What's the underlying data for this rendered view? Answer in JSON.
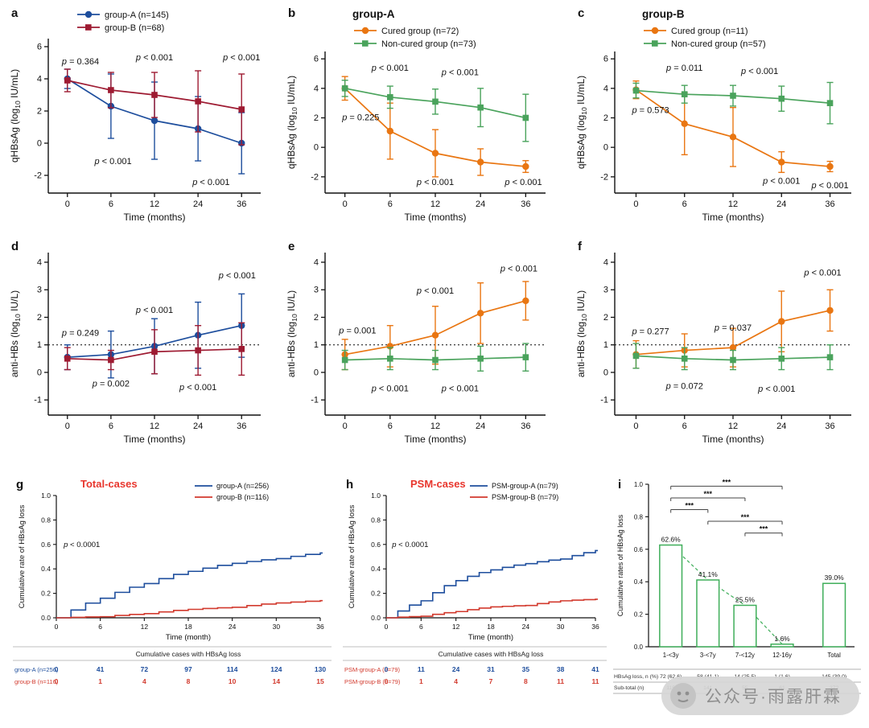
{
  "figure": {
    "panels": [
      {
        "letter": "a"
      },
      {
        "letter": "b"
      },
      {
        "letter": "c"
      },
      {
        "letter": "d"
      },
      {
        "letter": "e"
      },
      {
        "letter": "f"
      },
      {
        "letter": "g"
      },
      {
        "letter": "h"
      },
      {
        "letter": "i"
      }
    ],
    "watermark": {
      "text": "公众号·雨露肝霖"
    }
  },
  "colors": {
    "group_a_blue": "#1e4e9d",
    "group_b_maroon": "#9e1b32",
    "cured_orange": "#e97612",
    "noncured_green": "#4aa35c",
    "km_blue": "#1e4e9d",
    "km_red": "#d23a2e",
    "panel_title_red": "#e8362d",
    "bar_green": "#3fae5a"
  },
  "chart_data": [
    {
      "id": "a",
      "type": "errorline",
      "show_legend": true,
      "ylabel": "qHBsAg (log10 IU/mL)",
      "xlabel": "Time (months)",
      "ylim": [
        -3.1,
        6.5
      ],
      "yticks": [
        -2,
        0,
        2,
        4,
        6
      ],
      "categories": [
        "0",
        "6",
        "12",
        "24",
        "36"
      ],
      "series": [
        {
          "name": "group-A (n=145)",
          "color": "#1e4e9d",
          "marker": "circle",
          "values": [
            4.0,
            2.3,
            1.4,
            0.9,
            0.0
          ],
          "err": [
            0.6,
            2.0,
            2.4,
            2.0,
            1.9
          ]
        },
        {
          "name": "group-B (n=68)",
          "color": "#9e1b32",
          "marker": "square",
          "values": [
            3.9,
            3.3,
            3.0,
            2.6,
            2.1
          ],
          "err": [
            0.7,
            1.1,
            1.4,
            1.9,
            2.2
          ]
        }
      ],
      "annotations": [
        {
          "text": "p = 0.364",
          "xi": 0.3,
          "y": 5.05
        },
        {
          "text": "p < 0.001",
          "xi": 2,
          "y": 5.3
        },
        {
          "text": "p < 0.001",
          "xi": 4,
          "y": 5.3
        },
        {
          "text": "p < 0.001",
          "xi": 1.05,
          "y": -1.15
        },
        {
          "text": "p < 0.001",
          "xi": 3.3,
          "y": -2.45
        }
      ]
    },
    {
      "id": "b",
      "type": "errorline",
      "title": "group-A",
      "show_legend": true,
      "ylabel": "qHBsAg (log10 IU/mL)",
      "xlabel": "Time (months)",
      "ylim": [
        -3.1,
        6.5
      ],
      "yticks": [
        -2,
        0,
        2,
        4,
        6
      ],
      "categories": [
        "0",
        "6",
        "12",
        "24",
        "36"
      ],
      "series": [
        {
          "name": "Cured group (n=72)",
          "color": "#e97612",
          "marker": "circle",
          "values": [
            4.0,
            1.1,
            -0.4,
            -1.0,
            -1.3
          ],
          "err": [
            0.8,
            1.9,
            1.6,
            0.9,
            0.4
          ]
        },
        {
          "name": "Non-cured group (n=73)",
          "color": "#4aa35c",
          "marker": "square",
          "values": [
            4.0,
            3.4,
            3.1,
            2.7,
            2.0
          ],
          "err": [
            0.55,
            0.75,
            0.85,
            1.3,
            1.6
          ]
        }
      ],
      "annotations": [
        {
          "text": "p = 0.225",
          "xi": 0.35,
          "y": 2.0
        },
        {
          "text": "p < 0.001",
          "xi": 1,
          "y": 5.35
        },
        {
          "text": "p < 0.001",
          "xi": 2.55,
          "y": 5.05
        },
        {
          "text": "p < 0.001",
          "xi": 2,
          "y": -2.4
        },
        {
          "text": "p < 0.001",
          "xi": 3.95,
          "y": -2.4
        }
      ]
    },
    {
      "id": "c",
      "type": "errorline",
      "title": "group-B",
      "show_legend": true,
      "ylabel": "qHBsAg (log10 IU/mL)",
      "xlabel": "Time (months)",
      "ylim": [
        -3.1,
        6.5
      ],
      "yticks": [
        -2,
        0,
        2,
        4,
        6
      ],
      "categories": [
        "0",
        "6",
        "12",
        "24",
        "36"
      ],
      "series": [
        {
          "name": "Cured group (n=11)",
          "color": "#e97612",
          "marker": "circle",
          "values": [
            3.9,
            1.6,
            0.7,
            -1.0,
            -1.3
          ],
          "err": [
            0.6,
            2.1,
            2.0,
            0.7,
            0.35
          ]
        },
        {
          "name": "Non-cured group (n=57)",
          "color": "#4aa35c",
          "marker": "square",
          "values": [
            3.85,
            3.6,
            3.5,
            3.3,
            3.0
          ],
          "err": [
            0.5,
            0.6,
            0.7,
            0.85,
            1.4
          ]
        }
      ],
      "annotations": [
        {
          "text": "p = 0.573",
          "xi": 0.3,
          "y": 2.5
        },
        {
          "text": "p = 0.011",
          "xi": 1,
          "y": 5.35
        },
        {
          "text": "p < 0.001",
          "xi": 2.55,
          "y": 5.15
        },
        {
          "text": "p < 0.001",
          "xi": 3,
          "y": -2.3
        },
        {
          "text": "p < 0.001",
          "xi": 4,
          "y": -2.6
        }
      ]
    },
    {
      "id": "d",
      "type": "errorline",
      "show_legend": false,
      "refline": 1,
      "ylabel": "anti-HBs (log10 IU/L)",
      "xlabel": "Time (months)",
      "ylim": [
        -1.55,
        4.35
      ],
      "yticks": [
        -1,
        0,
        1,
        2,
        3,
        4
      ],
      "categories": [
        "0",
        "6",
        "12",
        "24",
        "36"
      ],
      "series": [
        {
          "name": "group-A (n=145)",
          "color": "#1e4e9d",
          "marker": "circle",
          "values": [
            0.55,
            0.65,
            0.95,
            1.35,
            1.7
          ],
          "err": [
            0.45,
            0.85,
            1.0,
            1.2,
            1.15
          ]
        },
        {
          "name": "group-B (n=68)",
          "color": "#9e1b32",
          "marker": "square",
          "values": [
            0.5,
            0.45,
            0.75,
            0.8,
            0.85
          ],
          "err": [
            0.4,
            0.35,
            0.8,
            0.9,
            0.95
          ]
        }
      ],
      "annotations": [
        {
          "text": "p = 0.249",
          "xi": 0.3,
          "y": 1.42
        },
        {
          "text": "p = 0.002",
          "xi": 1,
          "y": -0.42
        },
        {
          "text": "p < 0.001",
          "xi": 2,
          "y": 2.25
        },
        {
          "text": "p < 0.001",
          "xi": 3,
          "y": -0.55
        },
        {
          "text": "p < 0.001",
          "xi": 3.9,
          "y": 3.5
        }
      ]
    },
    {
      "id": "e",
      "type": "errorline",
      "show_legend": false,
      "refline": 1,
      "ylabel": "anti-HBs (log10 IU/L)",
      "xlabel": "Time (months)",
      "ylim": [
        -1.55,
        4.35
      ],
      "yticks": [
        -1,
        0,
        1,
        2,
        3,
        4
      ],
      "categories": [
        "0",
        "6",
        "12",
        "24",
        "36"
      ],
      "series": [
        {
          "name": "Cured group (n=72)",
          "color": "#e97612",
          "marker": "circle",
          "values": [
            0.65,
            0.95,
            1.35,
            2.15,
            2.6
          ],
          "err": [
            0.55,
            0.75,
            1.05,
            1.1,
            0.7
          ]
        },
        {
          "name": "Non-cured group (n=73)",
          "color": "#4aa35c",
          "marker": "square",
          "values": [
            0.45,
            0.5,
            0.45,
            0.5,
            0.55
          ],
          "err": [
            0.35,
            0.4,
            0.35,
            0.45,
            0.5
          ]
        }
      ],
      "annotations": [
        {
          "text": "p = 0.001",
          "xi": 0.28,
          "y": 1.5
        },
        {
          "text": "p < 0.001",
          "xi": 2,
          "y": 2.95
        },
        {
          "text": "p < 0.001",
          "xi": 3.85,
          "y": 3.75
        },
        {
          "text": "p < 0.001",
          "xi": 1,
          "y": -0.6
        },
        {
          "text": "p < 0.001",
          "xi": 2.55,
          "y": -0.6
        }
      ]
    },
    {
      "id": "f",
      "type": "errorline",
      "show_legend": false,
      "refline": 1,
      "ylabel": "anti-HBs (log10 IU/L)",
      "xlabel": "Time (months)",
      "ylim": [
        -1.55,
        4.35
      ],
      "yticks": [
        -1,
        0,
        1,
        2,
        3,
        4
      ],
      "categories": [
        "0",
        "6",
        "12",
        "24",
        "36"
      ],
      "series": [
        {
          "name": "Cured group (n=11)",
          "color": "#e97612",
          "marker": "circle",
          "values": [
            0.65,
            0.8,
            0.9,
            1.85,
            2.25
          ],
          "err": [
            0.5,
            0.6,
            0.7,
            1.1,
            0.75
          ]
        },
        {
          "name": "Non-cured group (n=57)",
          "color": "#4aa35c",
          "marker": "square",
          "values": [
            0.6,
            0.5,
            0.45,
            0.5,
            0.55
          ],
          "err": [
            0.45,
            0.4,
            0.35,
            0.4,
            0.45
          ]
        }
      ],
      "annotations": [
        {
          "text": "p = 0.277",
          "xi": 0.3,
          "y": 1.48
        },
        {
          "text": "p = 0.037",
          "xi": 2,
          "y": 1.6
        },
        {
          "text": "p < 0.001",
          "xi": 3.85,
          "y": 3.6
        },
        {
          "text": "p = 0.072",
          "xi": 1,
          "y": -0.52
        },
        {
          "text": "p < 0.001",
          "xi": 2.9,
          "y": -0.62
        }
      ]
    },
    {
      "id": "g",
      "type": "km",
      "title": "Total-cases",
      "title_color": "#e8362d",
      "ylabel": "Cumulative rate of HBsAg loss",
      "xlabel": "Time (month)",
      "ylim": [
        0,
        1.0
      ],
      "yticks": [
        0,
        0.2,
        0.4,
        0.6,
        0.8,
        1.0
      ],
      "xticks": [
        0,
        6,
        12,
        18,
        24,
        30,
        36
      ],
      "pvalue": "p < 0.0001",
      "series": [
        {
          "name": "group-A (n=256)",
          "color": "#1e4e9d",
          "rates": [
            0,
            0.16,
            0.28,
            0.38,
            0.445,
            0.484,
            0.53
          ]
        },
        {
          "name": "group-B (n=116)",
          "color": "#d23a2e",
          "rates": [
            0,
            0.009,
            0.034,
            0.069,
            0.086,
            0.121,
            0.14
          ]
        }
      ],
      "table": {
        "header": "Cumulative cases with HBsAg loss",
        "rows": [
          {
            "label": "group-A (n=256)",
            "label_color": "#1e4e9d",
            "value_color": "#1e4e9d",
            "values": [
              "0",
              "41",
              "72",
              "97",
              "114",
              "124",
              "130"
            ]
          },
          {
            "label": "group-B (n=116)",
            "label_color": "#d23a2e",
            "value_color": "#d23a2e",
            "values": [
              "0",
              "1",
              "4",
              "8",
              "10",
              "14",
              "15"
            ]
          }
        ]
      }
    },
    {
      "id": "h",
      "type": "km",
      "title": "PSM-cases",
      "title_color": "#e8362d",
      "ylabel": "Cumulative rate of HBsAg loss",
      "xlabel": "Time (month)",
      "ylim": [
        0,
        1.0
      ],
      "yticks": [
        0,
        0.2,
        0.4,
        0.6,
        0.8,
        1.0
      ],
      "xticks": [
        0,
        6,
        12,
        18,
        24,
        30,
        36
      ],
      "pvalue": "p < 0.0001",
      "series": [
        {
          "name": "PSM-group-A (n=79)",
          "color": "#1e4e9d",
          "rates": [
            0,
            0.139,
            0.304,
            0.392,
            0.443,
            0.481,
            0.55
          ]
        },
        {
          "name": "PSM-group-B (n=79)",
          "color": "#d23a2e",
          "rates": [
            0,
            0.013,
            0.051,
            0.089,
            0.101,
            0.139,
            0.152
          ]
        }
      ],
      "table": {
        "header": "Cumulative cases with HBsAg loss",
        "rows": [
          {
            "label": "PSM-group-A (n=79)",
            "label_color": "#d23a2e",
            "value_color": "#1e4e9d",
            "values": [
              "0",
              "11",
              "24",
              "31",
              "35",
              "38",
              "41"
            ]
          },
          {
            "label": "PSM-group-B (n=79)",
            "label_color": "#d23a2e",
            "value_color": "#d23a2e",
            "values": [
              "0",
              "1",
              "4",
              "7",
              "8",
              "11",
              "11"
            ]
          }
        ]
      }
    },
    {
      "id": "i",
      "type": "bar",
      "ylabel": "Cumulative rates of HBsAg loss",
      "ylim": [
        0,
        1.0
      ],
      "yticks": [
        0,
        0.2,
        0.4,
        0.6,
        0.8,
        1.0
      ],
      "categories": [
        "1-<3y",
        "3-<7y",
        "7-<12y",
        "12-16y",
        "Total"
      ],
      "values": [
        0.626,
        0.411,
        0.255,
        0.016,
        0.39
      ],
      "value_labels": [
        "62.6%",
        "41.1%",
        "25.5%",
        "1.6%",
        "39.0%"
      ],
      "bar_color": "#3fae5a",
      "trend_indices": [
        0,
        1,
        2,
        3
      ],
      "brackets": [
        {
          "a": 2,
          "b": 3,
          "level": 0,
          "label": "***"
        },
        {
          "a": 1,
          "b": 3,
          "level": 1,
          "label": "***"
        },
        {
          "a": 0,
          "b": 1,
          "level": 2,
          "label": "***"
        },
        {
          "a": 0,
          "b": 2,
          "level": 3,
          "label": "***"
        },
        {
          "a": 0,
          "b": 3,
          "level": 4,
          "label": "***"
        }
      ],
      "table": {
        "rows": [
          {
            "label": "HBsAg loss, n (%)",
            "values": [
              "72 (62.6)",
              "58 (41.1)",
              "14 (25.5)",
              "1 (1.6)",
              "145 (39.0)"
            ]
          },
          {
            "label": "Sub-total (n)",
            "values": [
              "115",
              "141",
              "55",
              "61",
              "372"
            ]
          }
        ]
      }
    }
  ]
}
